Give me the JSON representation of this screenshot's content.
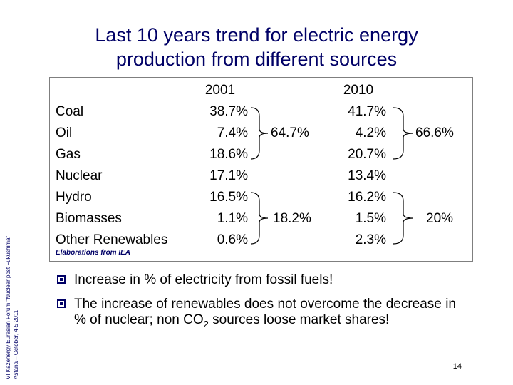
{
  "title": {
    "line1": "Last 10 years trend for electric energy",
    "line2": "production from different sources"
  },
  "sidebar": {
    "line1": "VI Kazenergy Eurasian Forum \"Nuclear post Fukushima\"",
    "line2": "Astana – October, 4-5 2011"
  },
  "table": {
    "col_2001": "2001",
    "col_2010": "2010",
    "rows": [
      {
        "source": "Coal",
        "y2001": "38.7%",
        "y2010": "41.7%"
      },
      {
        "source": "Oil",
        "y2001": "7.4%",
        "y2010": "4.2%"
      },
      {
        "source": "Gas",
        "y2001": "18.6%",
        "y2010": "20.7%"
      },
      {
        "source": "Nuclear",
        "y2001": "17.1%",
        "y2010": "13.4%"
      },
      {
        "source": "Hydro",
        "y2001": "16.5%",
        "y2010": "16.2%"
      },
      {
        "source": "Biomasses",
        "y2001": "1.1%",
        "y2010": "1.5%"
      },
      {
        "source": "Other Renewables",
        "y2001": "0.6%",
        "y2010": "2.3%"
      }
    ],
    "fossil_2001": "64.7%",
    "fossil_2010": "66.6%",
    "renew_2001": "18.2%",
    "renew_2010": "20%",
    "note": "Elaborations from IEA"
  },
  "bullets": {
    "b1": "Increase in % of electricity from fossil fuels!",
    "b2_pre": "The increase of renewables does not overcome the decrease in % of nuclear; non CO",
    "b2_sub": "2",
    "b2_post": " sources loose market shares!"
  },
  "page_number": "14"
}
